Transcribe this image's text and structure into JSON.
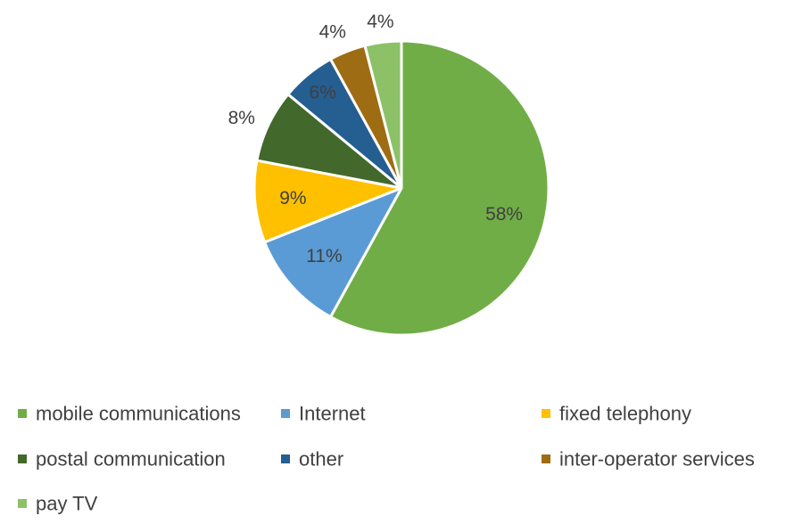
{
  "chart_data": {
    "type": "pie",
    "title": "",
    "legend_position": "bottom",
    "slices": [
      {
        "label": "mobile communications",
        "value": 58,
        "display": "58%",
        "color": "#70AD47"
      },
      {
        "label": "Internet",
        "value": 11,
        "display": "11%",
        "color": "#5B9BD5"
      },
      {
        "label": "fixed telephony",
        "value": 9,
        "display": "9%",
        "color": "#FFC000"
      },
      {
        "label": "postal communication",
        "value": 8,
        "display": "8%",
        "color": "#43682B"
      },
      {
        "label": "other",
        "value": 6,
        "display": "6%",
        "color": "#255E91"
      },
      {
        "label": "inter-operator services",
        "value": 4,
        "display": "4%",
        "color": "#9E6C12"
      },
      {
        "label": "pay TV",
        "value": 4,
        "display": "4%",
        "color": "#8CC168"
      }
    ]
  }
}
